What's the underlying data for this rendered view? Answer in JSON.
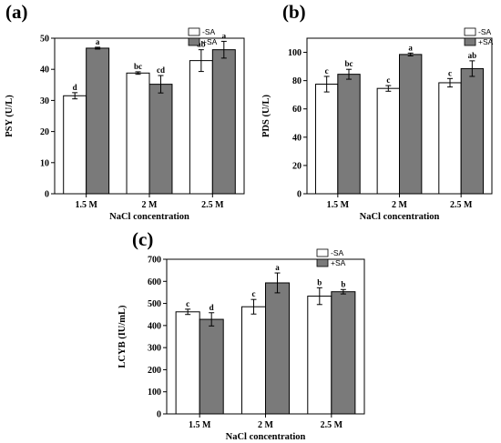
{
  "chart_data": [
    {
      "type": "bar",
      "panel_label": "(a)",
      "categories": [
        "1.5 M",
        "2 M",
        "2.5 M"
      ],
      "xlabel": "NaCl concentration",
      "ylabel": "PSY (U/L)",
      "ylim": [
        0,
        50
      ],
      "yticks": [
        0,
        10,
        20,
        30,
        40,
        50
      ],
      "legend_position": "top-right",
      "series": [
        {
          "name": "-SA",
          "color": "#ffffff",
          "values": [
            31.5,
            38.8,
            42.8
          ],
          "errors": [
            1.0,
            0.4,
            3.5
          ],
          "letters": [
            "d",
            "bc",
            "ab"
          ]
        },
        {
          "name": "+SA",
          "color": "#7a7a7a",
          "values": [
            46.8,
            35.2,
            46.3
          ],
          "errors": [
            0.3,
            2.8,
            2.7
          ],
          "letters": [
            "a",
            "cd",
            "a"
          ]
        }
      ]
    },
    {
      "type": "bar",
      "panel_label": "(b)",
      "categories": [
        "1.5 M",
        "2 M",
        "2.5 M"
      ],
      "xlabel": "NaCl concentration",
      "ylabel": "PDS (U/L)",
      "ylim": [
        0,
        110
      ],
      "yticks": [
        0,
        20,
        40,
        60,
        80,
        100
      ],
      "legend_position": "top-right",
      "series": [
        {
          "name": "-SA",
          "color": "#ffffff",
          "values": [
            77.5,
            74.5,
            78.5
          ],
          "errors": [
            5.5,
            2.0,
            3.0
          ],
          "letters": [
            "c",
            "c",
            "c"
          ]
        },
        {
          "name": "+SA",
          "color": "#7a7a7a",
          "values": [
            84.5,
            98.5,
            88.5
          ],
          "errors": [
            3.5,
            1.0,
            5.5
          ],
          "letters": [
            "bc",
            "a",
            "ab"
          ]
        }
      ]
    },
    {
      "type": "bar",
      "panel_label": "(c)",
      "categories": [
        "1.5 M",
        "2 M",
        "2.5 M"
      ],
      "xlabel": "NaCl concentration",
      "ylabel": "LCYB (IU/mL)",
      "ylim": [
        0,
        700
      ],
      "yticks": [
        0,
        100,
        200,
        300,
        400,
        500,
        600,
        700
      ],
      "legend_position": "top-right",
      "series": [
        {
          "name": "-SA",
          "color": "#ffffff",
          "values": [
            462,
            485,
            533
          ],
          "errors": [
            12,
            33,
            38
          ],
          "letters": [
            "c",
            "c",
            "b"
          ]
        },
        {
          "name": "+SA",
          "color": "#7a7a7a",
          "values": [
            428,
            593,
            553
          ],
          "errors": [
            30,
            45,
            10
          ],
          "letters": [
            "d",
            "a",
            "b"
          ]
        }
      ]
    }
  ]
}
